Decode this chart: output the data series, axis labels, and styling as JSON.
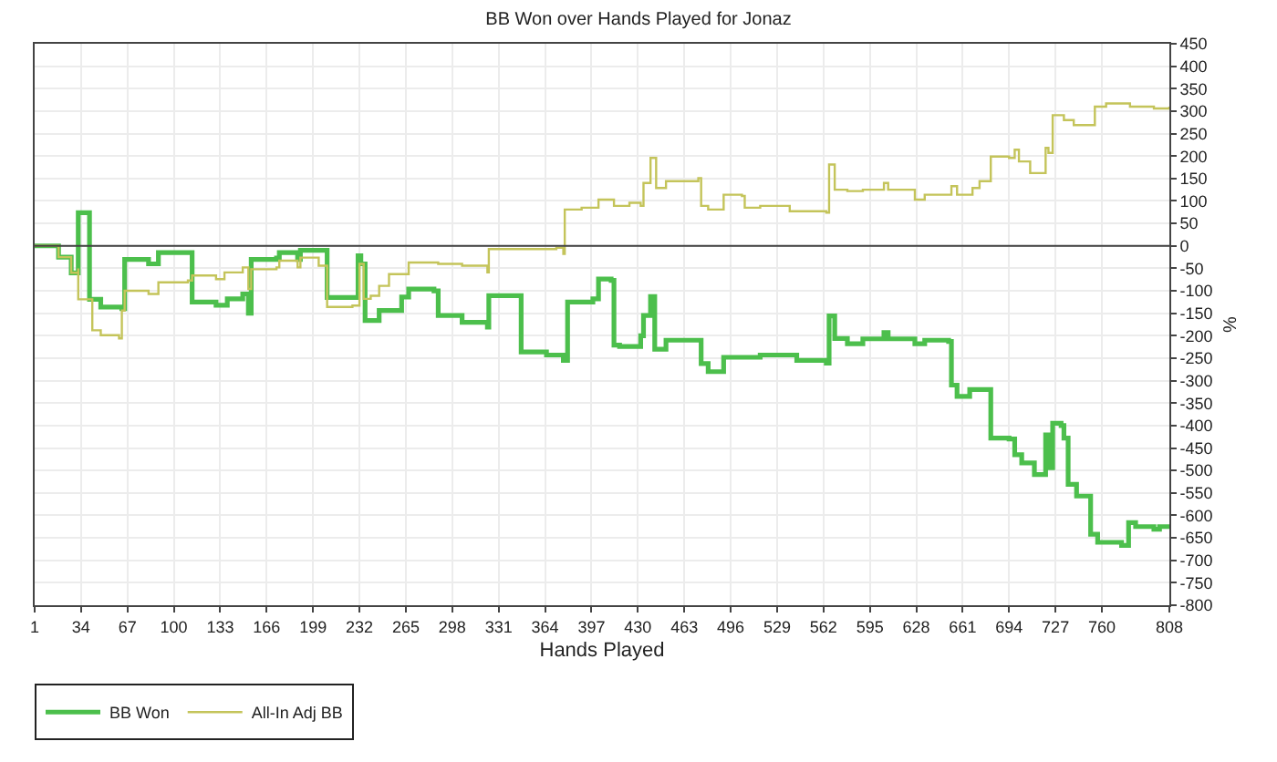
{
  "chart_data": {
    "type": "step",
    "title": "BB Won over Hands Played for Jonaz",
    "xlabel": "Hands Played",
    "ylabel": "%",
    "xlim": [
      1,
      808
    ],
    "xticks": [
      1,
      34,
      67,
      100,
      133,
      166,
      199,
      232,
      265,
      298,
      331,
      364,
      397,
      430,
      463,
      496,
      529,
      562,
      595,
      628,
      661,
      694,
      727,
      760,
      808
    ],
    "ylim": [
      -800,
      450
    ],
    "yticks": [
      -800,
      -750,
      -700,
      -650,
      -600,
      -550,
      -500,
      -450,
      -400,
      -350,
      -300,
      -250,
      -200,
      -150,
      -100,
      -50,
      0,
      50,
      100,
      150,
      200,
      250,
      300,
      350,
      400,
      450
    ],
    "grid": true,
    "legend": "bottom left",
    "line_style": "solid",
    "marker": "none",
    "ref_lines": [
      {
        "axis": "y",
        "value": 0,
        "label": null,
        "color": "#404040"
      }
    ],
    "series": [
      {
        "name": "BB Won",
        "color": "#4cbf4c",
        "x": [
          1,
          11,
          18,
          27,
          32,
          32,
          40,
          40,
          48,
          63,
          65,
          82,
          89,
          110,
          113,
          130,
          138,
          149,
          153,
          155,
          173,
          175,
          188,
          190,
          203,
          209,
          227,
          231,
          233,
          236,
          246,
          262,
          267,
          285,
          288,
          305,
          323,
          324,
          346,
          347,
          365,
          377,
          380,
          398,
          402,
          411,
          413,
          417,
          432,
          434,
          439,
          442,
          450,
          472,
          475,
          480,
          489,
          491,
          517,
          543,
          564,
          566,
          570,
          579,
          590,
          605,
          608,
          625,
          627,
          634,
          651,
          653,
          657,
          666,
          677,
          681,
          694,
          698,
          703,
          712,
          718,
          720,
          722,
          725,
          731,
          733,
          736,
          742,
          751,
          752,
          757,
          774,
          779,
          784,
          797,
          801,
          808
        ],
        "values": [
          0,
          0,
          -25,
          -60,
          -50,
          74,
          74,
          -119,
          -136,
          -140,
          -30,
          -40,
          -15,
          -15,
          -125,
          -132,
          -118,
          -107,
          -150,
          -30,
          -27,
          -15,
          -30,
          -10,
          -10,
          -115,
          -115,
          -22,
          -40,
          -166,
          -144,
          -114,
          -96,
          -100,
          -155,
          -170,
          -181,
          -111,
          -111,
          -236,
          -243,
          -255,
          -125,
          -118,
          -74,
          -77,
          -221,
          -224,
          -200,
          -155,
          -113,
          -230,
          -210,
          -210,
          -262,
          -280,
          -280,
          -248,
          -243,
          -255,
          -261,
          -156,
          -206,
          -218,
          -207,
          -193,
          -207,
          -207,
          -218,
          -210,
          -213,
          -310,
          -335,
          -320,
          -320,
          -428,
          -430,
          -465,
          -483,
          -509,
          -509,
          -421,
          -494,
          -395,
          -400,
          -428,
          -531,
          -557,
          -557,
          -642,
          -660,
          -667,
          -616,
          -625,
          -631,
          -625,
          -625
        ]
      },
      {
        "name": "All-In Adj BB",
        "color": "#c4c45a",
        "x": [
          1,
          11,
          18,
          27,
          32,
          32,
          42,
          48,
          61,
          63,
          65,
          82,
          89,
          110,
          113,
          130,
          136,
          149,
          153,
          155,
          173,
          175,
          188,
          190,
          203,
          209,
          227,
          232,
          235,
          240,
          246,
          253,
          267,
          288,
          305,
          323,
          324,
          346,
          372,
          377,
          378,
          390,
          402,
          413,
          424,
          432,
          434,
          439,
          443,
          450,
          473,
          475,
          480,
          489,
          491,
          504,
          506,
          517,
          538,
          564,
          566,
          570,
          579,
          590,
          605,
          608,
          625,
          627,
          634,
          651,
          653,
          657,
          668,
          673,
          677,
          681,
          694,
          698,
          701,
          709,
          718,
          720,
          722,
          725,
          733,
          740,
          755,
          763,
          780,
          797,
          808
        ],
        "values": [
          0,
          0,
          -25,
          -60,
          -50,
          -119,
          -188,
          -199,
          -206,
          -144,
          -100,
          -107,
          -81,
          -77,
          -66,
          -74,
          -59,
          -48,
          -96,
          -52,
          -48,
          -33,
          -48,
          -26,
          -44,
          -136,
          -133,
          -40,
          -118,
          -111,
          -89,
          -63,
          -37,
          -40,
          -44,
          -59,
          -7,
          -7,
          -4,
          -18,
          81,
          85,
          103,
          89,
          96,
          89,
          140,
          196,
          129,
          144,
          151,
          89,
          81,
          81,
          114,
          111,
          85,
          89,
          77,
          74,
          181,
          125,
          122,
          125,
          140,
          125,
          125,
          103,
          114,
          114,
          133,
          114,
          129,
          144,
          144,
          199,
          196,
          214,
          188,
          162,
          162,
          218,
          207,
          291,
          280,
          269,
          310,
          317,
          310,
          306,
          310
        ]
      }
    ]
  }
}
